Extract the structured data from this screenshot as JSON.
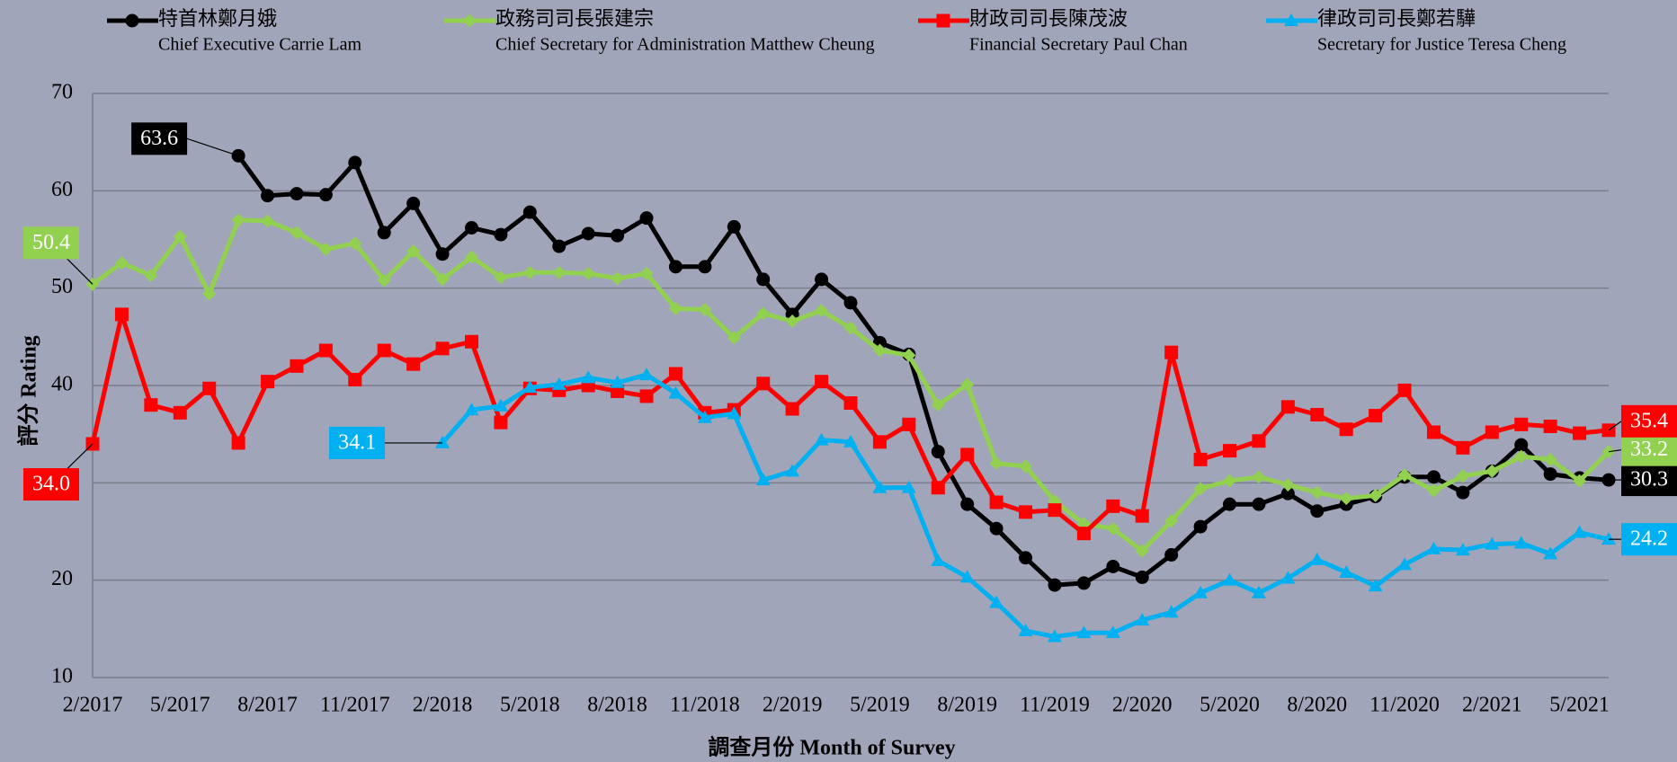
{
  "chart_data": {
    "type": "line",
    "y_label": "評分 Rating",
    "x_label": "調查月份 Month of Survey",
    "categories": [
      "2/2017",
      null,
      null,
      "5/2017",
      null,
      null,
      "8/2017",
      null,
      null,
      "11/2017",
      null,
      null,
      "2/2018",
      null,
      null,
      "5/2018",
      null,
      null,
      "8/2018",
      null,
      null,
      "11/2018",
      null,
      null,
      "2/2019",
      null,
      null,
      "5/2019",
      null,
      null,
      "8/2019",
      null,
      null,
      "11/2019",
      null,
      null,
      "2/2020",
      null,
      null,
      "5/2020",
      null,
      null,
      "8/2020",
      null,
      null,
      "11/2020",
      null,
      null,
      "2/2021",
      null,
      null,
      "5/2021",
      null
    ],
    "ylim": [
      10,
      70
    ],
    "yticks": [
      10,
      20,
      30,
      40,
      50,
      60,
      70
    ],
    "grid": true,
    "series": [
      {
        "name": "特首林鄭月娥",
        "name_en": "Chief Executive Carrie Lam",
        "color": "#000000",
        "marker": "circle",
        "values": [
          null,
          null,
          null,
          null,
          null,
          63.6,
          59.5,
          59.7,
          59.6,
          62.9,
          55.7,
          58.7,
          53.5,
          56.2,
          55.5,
          57.8,
          54.3,
          55.6,
          55.4,
          57.2,
          52.2,
          52.2,
          56.3,
          50.9,
          47.3,
          50.9,
          48.5,
          44.4,
          43.2,
          33.2,
          27.8,
          25.3,
          22.3,
          19.5,
          19.7,
          21.4,
          20.3,
          22.6,
          25.5,
          27.8,
          27.8,
          28.9,
          27.1,
          27.8,
          28.6,
          30.6,
          30.6,
          29.0,
          31.2,
          33.9,
          30.9,
          30.5,
          30.3
        ],
        "value_labels": [
          null,
          null,
          null,
          null,
          null,
          "63.6",
          null,
          null,
          null,
          null,
          null,
          null,
          null,
          null,
          null,
          null,
          null,
          null,
          null,
          null,
          null,
          null,
          null,
          null,
          null,
          null,
          null,
          null,
          null,
          null,
          null,
          null,
          null,
          null,
          null,
          null,
          null,
          null,
          null,
          null,
          null,
          null,
          null,
          null,
          null,
          null,
          null,
          null,
          null,
          null,
          null,
          null,
          "30.3"
        ]
      },
      {
        "name": "政務司司長張建宗",
        "name_en": "Chief Secretary for Administration Matthew Cheung",
        "color": "#92d050",
        "marker": "diamond",
        "values": [
          50.4,
          52.6,
          51.3,
          55.3,
          49.4,
          57.0,
          56.9,
          55.7,
          54.0,
          54.6,
          50.8,
          53.8,
          50.9,
          53.2,
          51.1,
          51.6,
          51.6,
          51.5,
          51.0,
          51.5,
          47.9,
          47.8,
          44.9,
          47.4,
          46.6,
          47.7,
          45.9,
          43.6,
          43.1,
          38.0,
          40.1,
          32.0,
          31.7,
          28.1,
          25.8,
          25.3,
          23.0,
          26.1,
          29.4,
          30.2,
          30.6,
          29.8,
          29.0,
          28.4,
          28.7,
          30.8,
          29.2,
          30.7,
          31.2,
          32.7,
          32.4,
          30.2,
          33.2
        ],
        "value_labels": [
          "50.4",
          null,
          null,
          null,
          null,
          null,
          null,
          null,
          null,
          null,
          null,
          null,
          null,
          null,
          null,
          null,
          null,
          null,
          null,
          null,
          null,
          null,
          null,
          null,
          null,
          null,
          null,
          null,
          null,
          null,
          null,
          null,
          null,
          null,
          null,
          null,
          null,
          null,
          null,
          null,
          null,
          null,
          null,
          null,
          null,
          null,
          null,
          null,
          null,
          null,
          null,
          null,
          "33.2"
        ]
      },
      {
        "name": "財政司司長陳茂波",
        "name_en": "Financial Secretary Paul Chan",
        "color": "#ff0000",
        "marker": "square",
        "values": [
          34.0,
          47.3,
          38.0,
          37.2,
          39.7,
          34.1,
          40.4,
          42.0,
          43.6,
          40.6,
          43.6,
          42.2,
          43.8,
          44.5,
          36.2,
          39.7,
          39.5,
          40.0,
          39.4,
          38.9,
          41.2,
          37.2,
          37.5,
          40.2,
          37.6,
          40.4,
          38.2,
          34.2,
          36.0,
          29.5,
          32.9,
          28.0,
          27.0,
          27.2,
          24.8,
          27.6,
          26.6,
          43.4,
          32.4,
          33.3,
          34.3,
          37.8,
          37.0,
          35.5,
          36.9,
          39.5,
          35.2,
          33.6,
          35.2,
          36.0,
          35.8,
          35.1,
          35.4
        ],
        "value_labels": [
          "34.0",
          null,
          null,
          null,
          null,
          null,
          null,
          null,
          null,
          null,
          null,
          null,
          null,
          null,
          null,
          null,
          null,
          null,
          null,
          null,
          null,
          null,
          null,
          null,
          null,
          null,
          null,
          null,
          null,
          null,
          null,
          null,
          null,
          null,
          null,
          null,
          null,
          null,
          null,
          null,
          null,
          null,
          null,
          null,
          null,
          null,
          null,
          null,
          null,
          null,
          null,
          null,
          "35.4"
        ]
      },
      {
        "name": "律政司司長鄭若驊",
        "name_en": "Secretary for Justice Teresa Cheng",
        "color": "#00b0f0",
        "marker": "triangle",
        "values": [
          null,
          null,
          null,
          null,
          null,
          null,
          null,
          null,
          null,
          null,
          null,
          null,
          34.1,
          37.5,
          37.9,
          39.8,
          40.1,
          40.8,
          40.3,
          41.1,
          39.2,
          36.7,
          37.1,
          30.3,
          31.2,
          34.4,
          34.2,
          29.5,
          29.5,
          22.0,
          20.3,
          17.7,
          14.8,
          14.2,
          14.6,
          14.6,
          15.9,
          16.7,
          18.7,
          20.0,
          18.7,
          20.2,
          22.1,
          20.8,
          19.4,
          21.6,
          23.2,
          23.1,
          23.7,
          23.8,
          22.7,
          24.9,
          24.2
        ],
        "value_labels": [
          null,
          null,
          null,
          null,
          null,
          null,
          null,
          null,
          null,
          null,
          null,
          null,
          "34.1",
          null,
          null,
          null,
          null,
          null,
          null,
          null,
          null,
          null,
          null,
          null,
          null,
          null,
          null,
          null,
          null,
          null,
          null,
          null,
          null,
          null,
          null,
          null,
          null,
          null,
          null,
          null,
          null,
          null,
          null,
          null,
          null,
          null,
          null,
          null,
          null,
          null,
          null,
          null,
          "24.2"
        ]
      }
    ]
  }
}
